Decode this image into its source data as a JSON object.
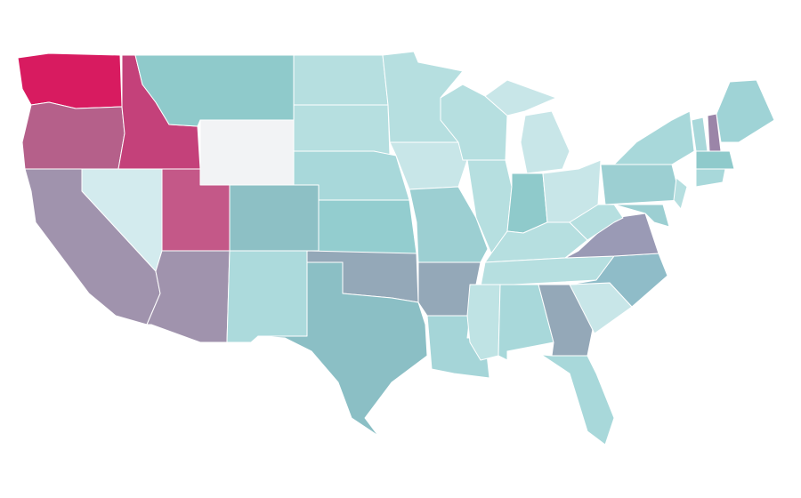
{
  "map": {
    "regions": [
      {
        "color": "#d81b60"
      },
      {
        "color": "#b5608a"
      },
      {
        "color": "#c4417a"
      },
      {
        "color": "#8fcacb"
      },
      {
        "color": "#f2f3f5"
      },
      {
        "color": "#d3ebee"
      },
      {
        "color": "#a093ad"
      },
      {
        "color": "#c45888"
      },
      {
        "color": "#a093ad"
      },
      {
        "color": "#8dc0c5"
      },
      {
        "color": "#acdadc"
      },
      {
        "color": "#b6dfe0"
      },
      {
        "color": "#b6dfe0"
      },
      {
        "color": "#a8d8da"
      },
      {
        "color": "#93cdcf"
      },
      {
        "color": "#94a8b8"
      },
      {
        "color": "#8bbfc5"
      },
      {
        "color": "#b6dfe0"
      },
      {
        "color": "#c8e6e8"
      },
      {
        "color": "#9ccfd2"
      },
      {
        "color": "#94a8b8"
      },
      {
        "color": "#a5d5d8"
      },
      {
        "color": "#b6dfe0"
      },
      {
        "color": "#b6dfe0"
      },
      {
        "color": "#8fcacb"
      },
      {
        "color": "#c8e6e8"
      },
      {
        "color": "#c8e6e8"
      },
      {
        "color": "#c8e6e8"
      },
      {
        "color": "#b6dfe0"
      },
      {
        "color": "#b6dfe0"
      },
      {
        "color": "#bfe3e4"
      },
      {
        "color": "#a8d8da"
      },
      {
        "color": "#94a8b8"
      },
      {
        "color": "#a8d8da"
      },
      {
        "color": "#c8e6e8"
      },
      {
        "color": "#8fbcc8"
      },
      {
        "color": "#9a9ab5"
      },
      {
        "color": "#b6dfe0"
      },
      {
        "color": "#9ccfd2"
      },
      {
        "color": "#a8d8da"
      },
      {
        "color": "#b6dfe0"
      },
      {
        "color": "#9ccfd2"
      },
      {
        "color": "#a8d8da"
      },
      {
        "color": "#9b85a8"
      },
      {
        "color": "#9fd3d6"
      },
      {
        "color": "#8fcacb"
      },
      {
        "color": "#a8d8da"
      }
    ]
  }
}
